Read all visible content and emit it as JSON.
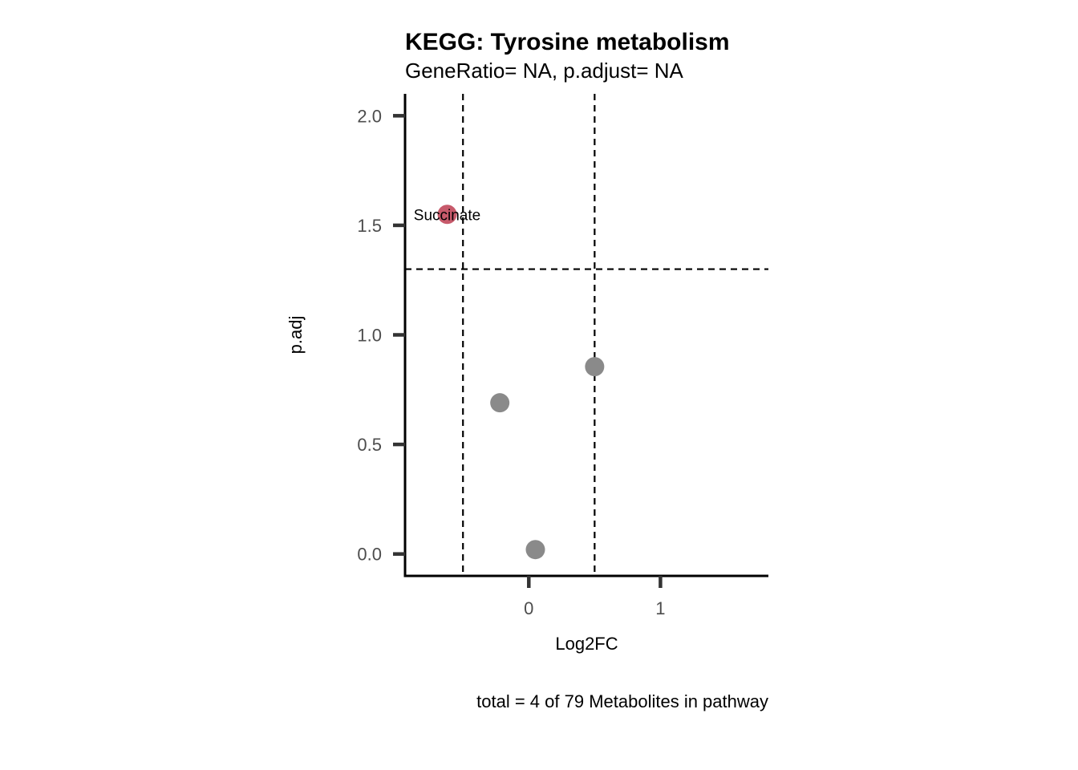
{
  "chart_data": {
    "type": "scatter",
    "title": "KEGG: Tyrosine metabolism",
    "subtitle": "GeneRatio= NA, p.adjust= NA",
    "xlabel": "Log2FC",
    "ylabel": "p.adj",
    "caption": "total = 4 of 79 Metabolites in pathway",
    "xlim": [
      -0.94,
      1.82
    ],
    "ylim": [
      -0.1,
      2.1
    ],
    "x_ticks": [
      0,
      1
    ],
    "y_ticks": [
      0.0,
      0.5,
      1.0,
      1.5,
      2.0
    ],
    "x_tick_labels": [
      "0",
      "1"
    ],
    "y_tick_labels": [
      "0.0",
      "0.5",
      "1.0",
      "1.5",
      "2.0"
    ],
    "vlines": [
      -0.5,
      0.5
    ],
    "hline": 1.3,
    "grid": false,
    "points": [
      {
        "x": -0.62,
        "y": 1.55,
        "label": "Succinate",
        "color": "#c75a6b"
      },
      {
        "x": -0.22,
        "y": 0.69,
        "label": "",
        "color": "#8a8a8a"
      },
      {
        "x": 0.05,
        "y": 0.02,
        "label": "",
        "color": "#8a8a8a"
      },
      {
        "x": 0.5,
        "y": 0.855,
        "label": "",
        "color": "#8a8a8a"
      }
    ]
  }
}
